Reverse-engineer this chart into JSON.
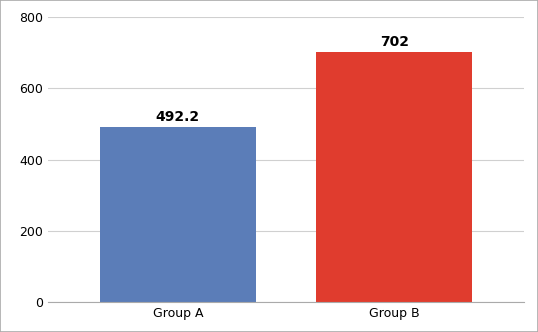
{
  "categories": [
    "Group A",
    "Group B"
  ],
  "values": [
    492.2,
    702
  ],
  "bar_colors": [
    "#5b7db8",
    "#e03c2e"
  ],
  "bar_labels": [
    "492.2",
    "702"
  ],
  "ylim": [
    0,
    800
  ],
  "yticks": [
    0,
    200,
    400,
    600,
    800
  ],
  "background_color": "#ffffff",
  "grid_color": "#d0d0d0",
  "label_fontsize": 10,
  "tick_fontsize": 9,
  "bar_width": 0.72,
  "border_color": "#aaaaaa",
  "border_linewidth": 1.0
}
